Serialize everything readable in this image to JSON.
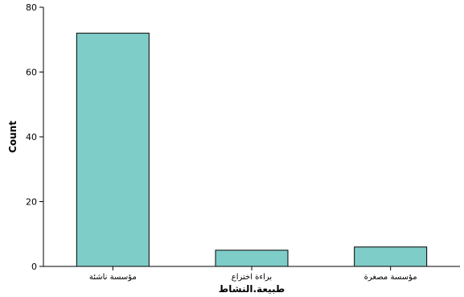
{
  "chart_data": {
    "type": "bar",
    "categories": [
      "مؤسسة ناشئة",
      "براءة اختراع",
      "مؤسسة مصغرة"
    ],
    "values": [
      72,
      5,
      6
    ],
    "xlabel": "طبيعة.النشاط",
    "ylabel": "Count",
    "ylim": [
      0,
      80
    ],
    "yticks": [
      0,
      20,
      40,
      60,
      80
    ],
    "bar_color": "#7ecdc8",
    "grid": false
  }
}
